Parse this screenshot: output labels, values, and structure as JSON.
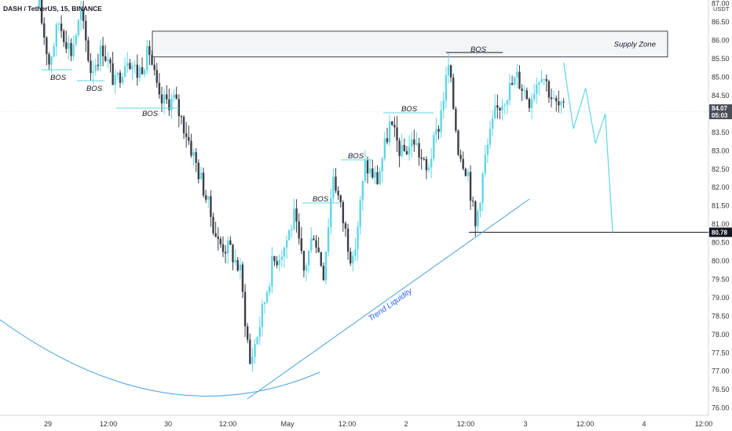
{
  "header": {
    "title": "DASH / TetherUS, 15, BINANCE"
  },
  "colors": {
    "bull": "#5fd6e6",
    "bear": "#3c3f47",
    "line": "#4aa3df",
    "level": "#131722",
    "zone_fill": "#f4f5f7",
    "price_tag": "#4a4e57"
  },
  "chart_data": {
    "type": "candlestick",
    "title": "DASH / TetherUS, 15, BINANCE",
    "ylabel": "USDT",
    "ylim": [
      75.8,
      87.1
    ],
    "y_ticks": [
      "87.00",
      "86.50",
      "86.00",
      "85.50",
      "85.00",
      "84.50",
      "84.00",
      "83.50",
      "83.00",
      "82.50",
      "82.00",
      "81.50",
      "81.00",
      "80.50",
      "80.00",
      "79.50",
      "79.00",
      "78.50",
      "78.00",
      "77.50",
      "77.00",
      "76.50",
      "76.00"
    ],
    "x_ticks": [
      "29",
      "12:00",
      "30",
      "12:00",
      "May",
      "12:00",
      "2",
      "12:00",
      "3",
      "12:00",
      "4",
      "12:00"
    ],
    "current_price": {
      "value": "84.07",
      "countdown": "05:03"
    },
    "target_level": {
      "value": "80.78"
    },
    "supply_zone": {
      "label": "Supply Zone",
      "low": 85.55,
      "high": 86.25
    },
    "bos_labels": [
      "BOS",
      "BOS",
      "BOS",
      "BOS",
      "BOS",
      "BOS",
      "BOS"
    ],
    "trend_label": "Trend Liquidity",
    "price_path": [
      {
        "t": 0,
        "p": 86.9
      },
      {
        "t": 4,
        "p": 85.4
      },
      {
        "t": 8,
        "p": 86.5
      },
      {
        "t": 13,
        "p": 85.7
      },
      {
        "t": 17,
        "p": 86.7
      },
      {
        "t": 21,
        "p": 85.2
      },
      {
        "t": 26,
        "p": 85.8
      },
      {
        "t": 31,
        "p": 84.8
      },
      {
        "t": 36,
        "p": 85.6
      },
      {
        "t": 40,
        "p": 85.1
      },
      {
        "t": 45,
        "p": 85.7
      },
      {
        "t": 49,
        "p": 84.3
      },
      {
        "t": 55,
        "p": 84.4
      },
      {
        "t": 60,
        "p": 83.5
      },
      {
        "t": 67,
        "p": 82.0
      },
      {
        "t": 73,
        "p": 80.5
      },
      {
        "t": 78,
        "p": 80.3
      },
      {
        "t": 82,
        "p": 79.7
      },
      {
        "t": 86,
        "p": 77.2
      },
      {
        "t": 90,
        "p": 78.3
      },
      {
        "t": 95,
        "p": 79.9
      },
      {
        "t": 100,
        "p": 80.4
      },
      {
        "t": 104,
        "p": 81.2
      },
      {
        "t": 108,
        "p": 79.7
      },
      {
        "t": 112,
        "p": 80.8
      },
      {
        "t": 116,
        "p": 79.7
      },
      {
        "t": 120,
        "p": 82.4
      },
      {
        "t": 124,
        "p": 81.1
      },
      {
        "t": 128,
        "p": 79.9
      },
      {
        "t": 133,
        "p": 82.6
      },
      {
        "t": 138,
        "p": 82.2
      },
      {
        "t": 143,
        "p": 83.7
      },
      {
        "t": 148,
        "p": 82.9
      },
      {
        "t": 153,
        "p": 83.3
      },
      {
        "t": 158,
        "p": 82.4
      },
      {
        "t": 163,
        "p": 83.7
      },
      {
        "t": 167,
        "p": 85.3
      },
      {
        "t": 171,
        "p": 83.1
      },
      {
        "t": 175,
        "p": 82.4
      },
      {
        "t": 178,
        "p": 80.9
      },
      {
        "t": 182,
        "p": 82.8
      },
      {
        "t": 186,
        "p": 84.0
      },
      {
        "t": 190,
        "p": 84.5
      },
      {
        "t": 195,
        "p": 85.0
      },
      {
        "t": 200,
        "p": 84.4
      },
      {
        "t": 205,
        "p": 85.2
      },
      {
        "t": 210,
        "p": 84.3
      },
      {
        "t": 214,
        "p": 84.07
      }
    ],
    "projection": [
      {
        "t": 214,
        "p": 85.4
      },
      {
        "t": 218,
        "p": 83.6
      },
      {
        "t": 223,
        "p": 84.7
      },
      {
        "t": 227,
        "p": 83.2
      },
      {
        "t": 231,
        "p": 84.0
      },
      {
        "t": 234,
        "p": 80.78
      }
    ]
  }
}
